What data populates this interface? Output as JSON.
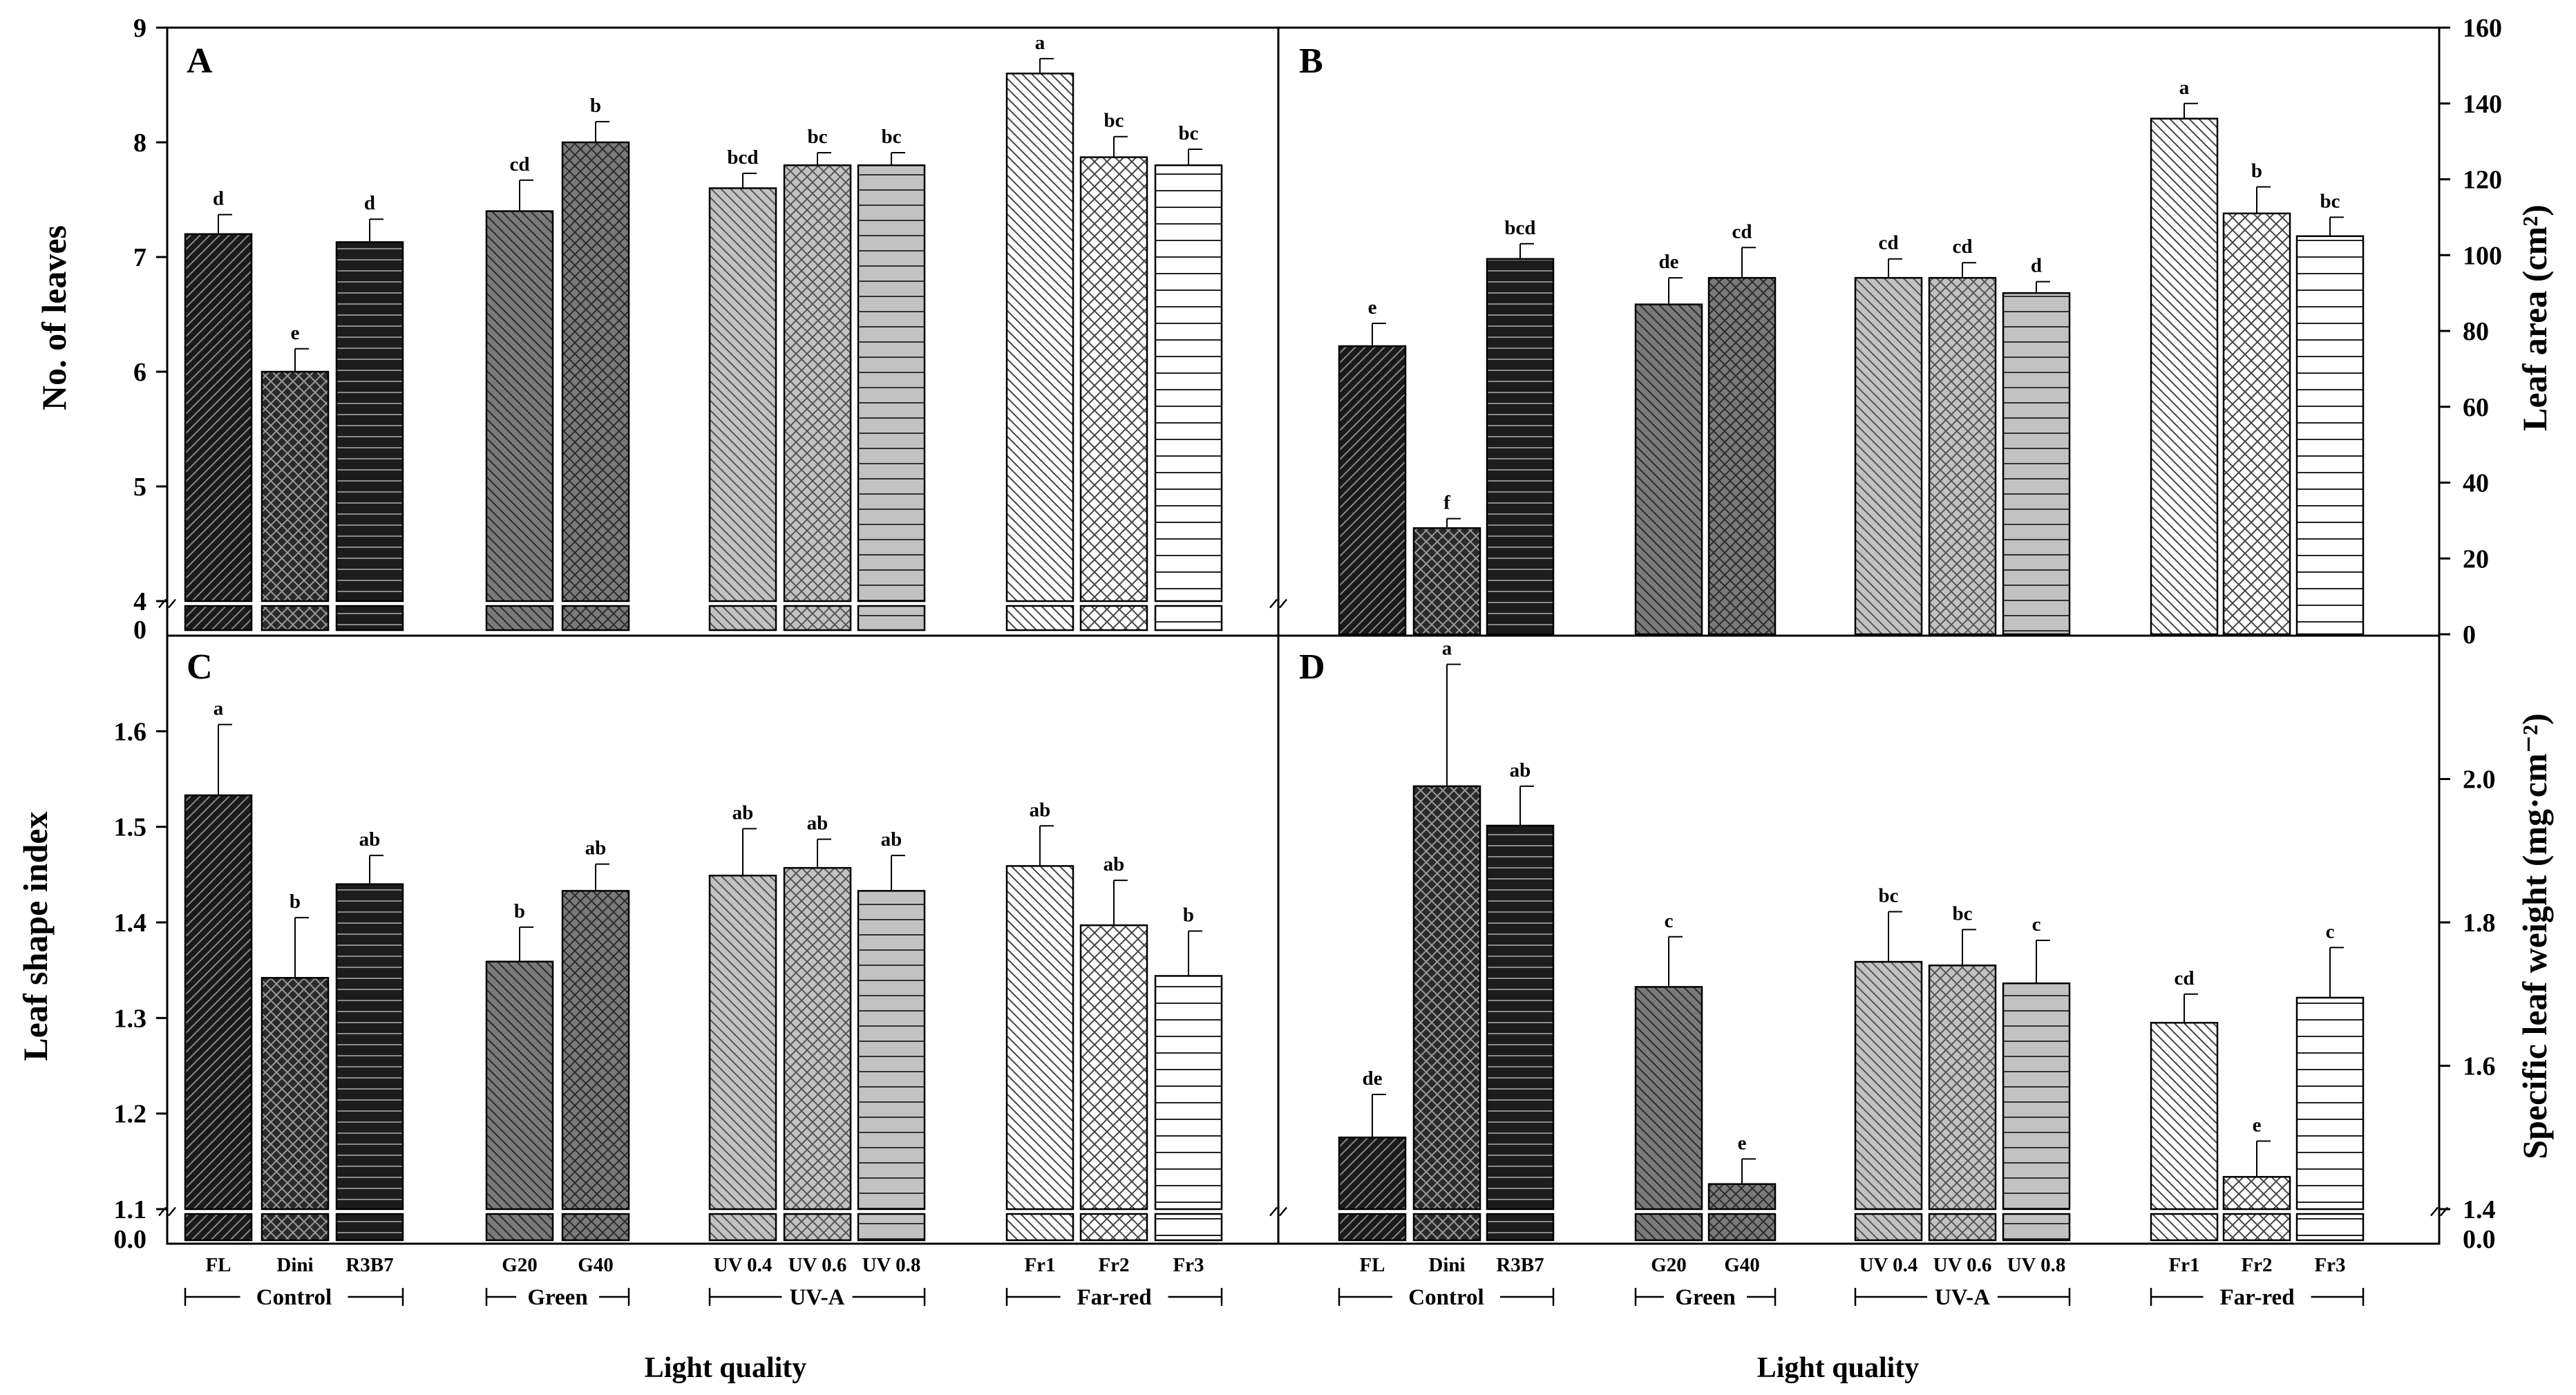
{
  "x_axis_title": "Light quality",
  "groups": [
    {
      "label": "Control",
      "categories": [
        "FL",
        "Dini",
        "R3B7"
      ]
    },
    {
      "label": "Green",
      "categories": [
        "G20",
        "G40"
      ]
    },
    {
      "label": "UV-A",
      "categories": [
        "UV 0.4",
        "UV 0.6",
        "UV 0.8"
      ]
    },
    {
      "label": "Far-red",
      "categories": [
        "Fr1",
        "Fr2",
        "Fr3"
      ]
    }
  ],
  "chart_data": [
    {
      "panel": "A",
      "type": "bar",
      "ylabel": "No. of leaves",
      "ylim": [
        4,
        9
      ],
      "yticks": [
        "4",
        "5",
        "6",
        "7",
        "8",
        "9"
      ],
      "broken_axis_base": "0",
      "categories": [
        "FL",
        "Dini",
        "R3B7",
        "G20",
        "G40",
        "UV 0.4",
        "UV 0.6",
        "UV 0.8",
        "Fr1",
        "Fr2",
        "Fr3"
      ],
      "values": [
        7.2,
        6.0,
        7.13,
        7.4,
        8.0,
        7.6,
        7.8,
        7.8,
        8.6,
        7.87,
        7.8
      ],
      "errors": [
        0.17,
        0.2,
        0.2,
        0.27,
        0.18,
        0.13,
        0.11,
        0.11,
        0.13,
        0.18,
        0.14
      ],
      "letters": [
        "d",
        "e",
        "d",
        "cd",
        "b",
        "bcd",
        "bc",
        "bc",
        "a",
        "bc",
        "bc"
      ]
    },
    {
      "panel": "B",
      "type": "bar",
      "ylabel": "Leaf area (cm²)",
      "ylim": [
        0,
        160
      ],
      "yticks": [
        "0",
        "20",
        "40",
        "60",
        "80",
        "100",
        "120",
        "140",
        "160"
      ],
      "categories": [
        "FL",
        "Dini",
        "R3B7",
        "G20",
        "G40",
        "UV 0.4",
        "UV 0.6",
        "UV 0.8",
        "Fr1",
        "Fr2",
        "Fr3"
      ],
      "values": [
        76,
        28,
        99,
        87,
        94,
        94,
        94,
        90,
        136,
        111,
        105
      ],
      "errors": [
        6,
        2.5,
        4,
        7,
        8,
        5,
        4,
        3,
        4,
        7,
        5
      ],
      "letters": [
        "e",
        "f",
        "bcd",
        "de",
        "cd",
        "cd",
        "cd",
        "d",
        "a",
        "b",
        "bc"
      ]
    },
    {
      "panel": "C",
      "type": "bar",
      "ylabel": "Leaf shape index",
      "ylim": [
        1.1,
        1.7
      ],
      "yticks": [
        "1.1",
        "1.2",
        "1.3",
        "1.4",
        "1.5",
        "1.6"
      ],
      "broken_axis_base": "0.0",
      "categories": [
        "FL",
        "Dini",
        "R3B7",
        "G20",
        "G40",
        "UV 0.4",
        "UV 0.6",
        "UV 0.8",
        "Fr1",
        "Fr2",
        "Fr3"
      ],
      "values": [
        1.533,
        1.342,
        1.44,
        1.359,
        1.433,
        1.449,
        1.457,
        1.433,
        1.459,
        1.397,
        1.344
      ],
      "errors": [
        0.074,
        0.063,
        0.03,
        0.036,
        0.028,
        0.049,
        0.03,
        0.037,
        0.042,
        0.047,
        0.047
      ],
      "letters": [
        "a",
        "b",
        "ab",
        "b",
        "ab",
        "ab",
        "ab",
        "ab",
        "ab",
        "ab",
        "b"
      ]
    },
    {
      "panel": "D",
      "type": "bar",
      "ylabel": "Specific leaf weight (mg·cm⁻²)",
      "ylim": [
        1.4,
        2.2
      ],
      "yticks": [
        "1.4",
        "1.6",
        "1.8",
        "2.0"
      ],
      "broken_axis_base": "0.0",
      "categories": [
        "FL",
        "Dini",
        "R3B7",
        "G20",
        "G40",
        "UV 0.4",
        "UV 0.6",
        "UV 0.8",
        "Fr1",
        "Fr2",
        "Fr3"
      ],
      "values": [
        1.5,
        1.99,
        1.935,
        1.71,
        1.435,
        1.745,
        1.74,
        1.715,
        1.66,
        1.445,
        1.695
      ],
      "errors": [
        0.06,
        0.17,
        0.055,
        0.07,
        0.035,
        0.07,
        0.05,
        0.06,
        0.04,
        0.05,
        0.07
      ],
      "letters": [
        "de",
        "a",
        "ab",
        "c",
        "e",
        "bc",
        "bc",
        "c",
        "cd",
        "e",
        "c"
      ]
    }
  ]
}
